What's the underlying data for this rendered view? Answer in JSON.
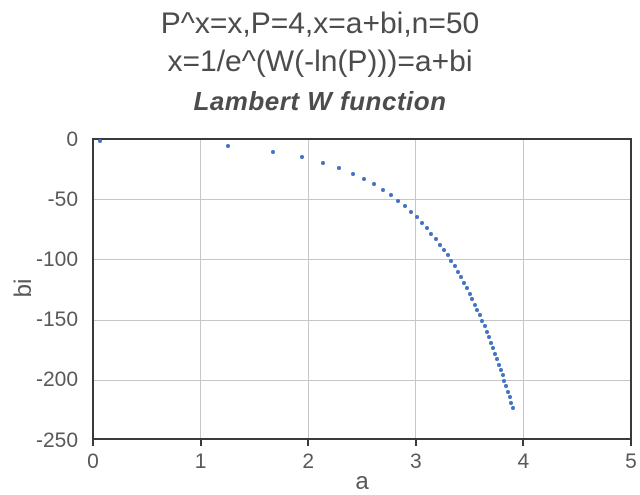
{
  "chart_data": {
    "type": "scatter",
    "subtitle_lines": [
      "P^x=x,P=4,x=a+bi,n=50",
      "x=1/e^(W(-ln(P)))=a+bi"
    ],
    "title": "Lambert W function",
    "xlabel": "a",
    "ylabel": "bi",
    "xlim": [
      0,
      5
    ],
    "ylim": [
      -250,
      0
    ],
    "x_ticks": [
      0,
      1,
      2,
      3,
      4,
      5
    ],
    "y_ticks": [
      0,
      -50,
      -100,
      -150,
      -200,
      -250
    ],
    "grid": true,
    "legend": "none",
    "num_points": 50,
    "points": [
      [
        0.064,
        -1.09
      ],
      [
        1.259,
        -5.52
      ],
      [
        1.677,
        -10.09
      ],
      [
        1.941,
        -14.64
      ],
      [
        2.134,
        -19.19
      ],
      [
        2.287,
        -23.73
      ],
      [
        2.412,
        -28.27
      ],
      [
        2.519,
        -32.81
      ],
      [
        2.612,
        -37.34
      ],
      [
        2.695,
        -41.88
      ],
      [
        2.769,
        -46.41
      ],
      [
        2.836,
        -50.95
      ],
      [
        2.897,
        -55.48
      ],
      [
        2.954,
        -60.02
      ],
      [
        3.007,
        -64.55
      ],
      [
        3.055,
        -69.09
      ],
      [
        3.101,
        -73.62
      ],
      [
        3.144,
        -78.15
      ],
      [
        3.185,
        -82.69
      ],
      [
        3.224,
        -87.22
      ],
      [
        3.26,
        -91.76
      ],
      [
        3.295,
        -96.29
      ],
      [
        3.328,
        -100.82
      ],
      [
        3.36,
        -105.35
      ],
      [
        3.39,
        -109.89
      ],
      [
        3.419,
        -114.42
      ],
      [
        3.447,
        -118.95
      ],
      [
        3.474,
        -123.49
      ],
      [
        3.5,
        -128.02
      ],
      [
        3.525,
        -132.55
      ],
      [
        3.55,
        -137.09
      ],
      [
        3.573,
        -141.62
      ],
      [
        3.596,
        -146.15
      ],
      [
        3.618,
        -150.68
      ],
      [
        3.639,
        -155.22
      ],
      [
        3.66,
        -159.75
      ],
      [
        3.68,
        -164.28
      ],
      [
        3.7,
        -168.82
      ],
      [
        3.719,
        -173.35
      ],
      [
        3.738,
        -177.88
      ],
      [
        3.756,
        -182.41
      ],
      [
        3.773,
        -186.95
      ],
      [
        3.791,
        -191.48
      ],
      [
        3.807,
        -196.01
      ],
      [
        3.824,
        -200.54
      ],
      [
        3.84,
        -205.08
      ],
      [
        3.856,
        -209.61
      ],
      [
        3.871,
        -214.14
      ],
      [
        3.886,
        -218.67
      ],
      [
        3.901,
        -223.21
      ]
    ],
    "colors": {
      "marker": "#4472C4",
      "title_text": "#4C4C4C",
      "axis_text": "#595959",
      "gridline": "#C6C6C6",
      "plot_border": "#3A3A3A",
      "background": "#FFFFFF"
    }
  }
}
